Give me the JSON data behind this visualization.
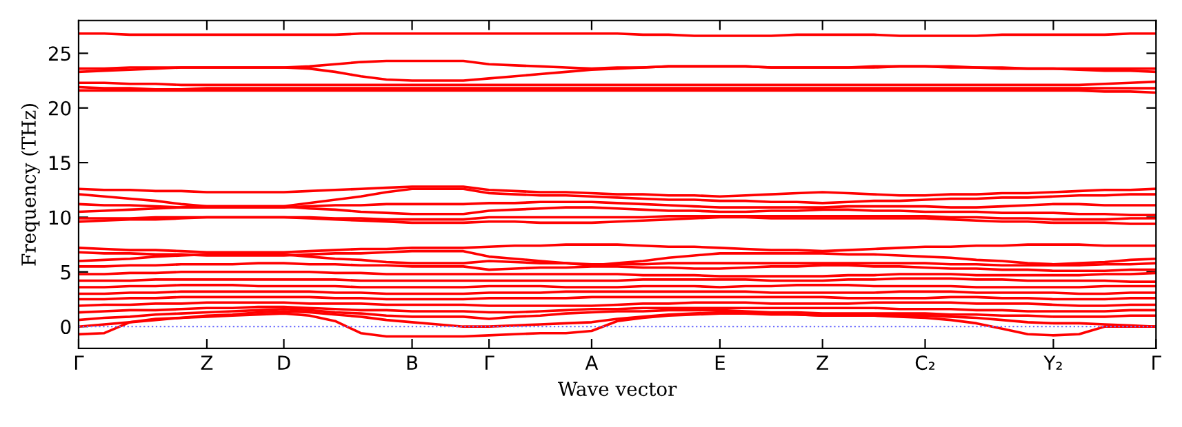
{
  "chart_data": {
    "type": "line",
    "xlabel": "Wave vector",
    "ylabel": "Frequency (THz)",
    "categories": [
      "Γ",
      null,
      null,
      null,
      null,
      "Z",
      null,
      null,
      "D",
      null,
      null,
      null,
      null,
      "B",
      null,
      null,
      "Γ",
      null,
      null,
      null,
      "A",
      null,
      null,
      null,
      null,
      "E",
      null,
      null,
      null,
      "Z",
      null,
      null,
      null,
      "C₂",
      null,
      null,
      null,
      null,
      "Y₂",
      null,
      null,
      null,
      "Γ"
    ],
    "ylim": [
      -2,
      28
    ],
    "yticks": [
      0,
      5,
      10,
      15,
      20,
      25
    ],
    "grid": false,
    "marker": "none",
    "line_style": "solid",
    "ref_lines": [
      {
        "axis": "y",
        "value": 0,
        "color": "#6f6fff",
        "line_style": "dotted"
      }
    ],
    "series": [
      {
        "color": "#ff0000",
        "values": [
          26.8,
          26.8,
          26.7,
          26.7,
          26.7,
          26.7,
          26.7,
          26.7,
          26.7,
          26.7,
          26.7,
          26.8,
          26.8,
          26.8,
          26.8,
          26.8,
          26.8,
          26.8,
          26.8,
          26.8,
          26.8,
          26.8,
          26.7,
          26.7,
          26.6,
          26.6,
          26.6,
          26.6,
          26.7,
          26.7,
          26.7,
          26.7,
          26.6,
          26.6,
          26.6,
          26.6,
          26.7,
          26.7,
          26.7,
          26.7,
          26.7,
          26.8,
          26.8
        ]
      },
      {
        "color": "#ff0000",
        "values": [
          23.6,
          23.6,
          23.7,
          23.7,
          23.7,
          23.7,
          23.7,
          23.7,
          23.7,
          23.8,
          24.0,
          24.2,
          24.3,
          24.3,
          24.3,
          24.3,
          24.0,
          23.9,
          23.8,
          23.7,
          23.6,
          23.7,
          23.7,
          23.8,
          23.8,
          23.8,
          23.8,
          23.7,
          23.7,
          23.7,
          23.7,
          23.8,
          23.8,
          23.8,
          23.7,
          23.7,
          23.6,
          23.6,
          23.6,
          23.5,
          23.4,
          23.4,
          23.3
        ]
      },
      {
        "color": "#ff0000",
        "values": [
          23.3,
          23.4,
          23.5,
          23.6,
          23.7,
          23.7,
          23.7,
          23.7,
          23.7,
          23.6,
          23.3,
          22.9,
          22.6,
          22.5,
          22.5,
          22.5,
          22.7,
          22.9,
          23.1,
          23.3,
          23.5,
          23.6,
          23.7,
          23.8,
          23.8,
          23.8,
          23.8,
          23.7,
          23.7,
          23.7,
          23.7,
          23.7,
          23.8,
          23.8,
          23.8,
          23.7,
          23.7,
          23.6,
          23.6,
          23.6,
          23.6,
          23.6,
          23.6
        ]
      },
      {
        "color": "#ff0000",
        "values": [
          22.3,
          22.3,
          22.2,
          22.2,
          22.1,
          22.1,
          22.1,
          22.1,
          22.1,
          22.1,
          22.1,
          22.1,
          22.1,
          22.1,
          22.1,
          22.1,
          22.1,
          22.1,
          22.1,
          22.1,
          22.1,
          22.1,
          22.1,
          22.1,
          22.1,
          22.1,
          22.1,
          22.1,
          22.1,
          22.1,
          22.1,
          22.1,
          22.1,
          22.1,
          22.1,
          22.1,
          22.1,
          22.1,
          22.1,
          22.1,
          22.2,
          22.3,
          22.4
        ]
      },
      {
        "color": "#ff0000",
        "values": [
          21.9,
          21.8,
          21.8,
          21.7,
          21.7,
          21.8,
          21.8,
          21.8,
          21.8,
          21.8,
          21.8,
          21.8,
          21.8,
          21.8,
          21.8,
          21.8,
          21.8,
          21.8,
          21.8,
          21.8,
          21.8,
          21.8,
          21.8,
          21.8,
          21.8,
          21.8,
          21.8,
          21.8,
          21.8,
          21.8,
          21.8,
          21.8,
          21.8,
          21.8,
          21.8,
          21.8,
          21.8,
          21.8,
          21.8,
          21.8,
          21.8,
          21.8,
          21.8
        ]
      },
      {
        "color": "#ff0000",
        "values": [
          21.6,
          21.6,
          21.6,
          21.6,
          21.6,
          21.6,
          21.6,
          21.6,
          21.6,
          21.6,
          21.6,
          21.6,
          21.6,
          21.6,
          21.6,
          21.6,
          21.6,
          21.6,
          21.6,
          21.6,
          21.6,
          21.6,
          21.6,
          21.6,
          21.6,
          21.6,
          21.6,
          21.6,
          21.6,
          21.6,
          21.6,
          21.6,
          21.6,
          21.6,
          21.6,
          21.6,
          21.6,
          21.6,
          21.6,
          21.6,
          21.5,
          21.5,
          21.4
        ]
      },
      {
        "color": "#ff0000",
        "values": [
          12.6,
          12.5,
          12.5,
          12.4,
          12.4,
          12.3,
          12.3,
          12.3,
          12.3,
          12.4,
          12.5,
          12.6,
          12.7,
          12.8,
          12.8,
          12.8,
          12.5,
          12.4,
          12.3,
          12.3,
          12.2,
          12.1,
          12.1,
          12.0,
          12.0,
          11.9,
          12.0,
          12.1,
          12.2,
          12.3,
          12.2,
          12.1,
          12.0,
          12.0,
          12.1,
          12.1,
          12.2,
          12.2,
          12.3,
          12.4,
          12.5,
          12.5,
          12.6
        ]
      },
      {
        "color": "#ff0000",
        "values": [
          12.1,
          11.9,
          11.7,
          11.5,
          11.2,
          11.0,
          11.0,
          11.0,
          11.0,
          11.3,
          11.6,
          11.9,
          12.3,
          12.6,
          12.6,
          12.6,
          12.2,
          12.1,
          12.0,
          12.0,
          11.9,
          11.8,
          11.7,
          11.6,
          11.6,
          11.5,
          11.5,
          11.4,
          11.4,
          11.3,
          11.4,
          11.5,
          11.5,
          11.6,
          11.7,
          11.7,
          11.8,
          11.8,
          11.9,
          12.0,
          12.0,
          12.1,
          12.1
        ]
      },
      {
        "color": "#ff0000",
        "values": [
          11.2,
          11.1,
          11.1,
          11.0,
          10.9,
          10.9,
          10.9,
          10.9,
          10.9,
          11.0,
          11.1,
          11.1,
          11.2,
          11.2,
          11.2,
          11.2,
          11.3,
          11.3,
          11.4,
          11.4,
          11.4,
          11.3,
          11.2,
          11.1,
          11.0,
          10.9,
          10.9,
          10.9,
          10.9,
          10.9,
          11.0,
          11.0,
          11.0,
          11.0,
          10.9,
          10.9,
          11.0,
          11.1,
          11.2,
          11.2,
          11.1,
          11.1,
          11.1
        ]
      },
      {
        "color": "#ff0000",
        "values": [
          10.5,
          10.6,
          10.7,
          10.8,
          10.9,
          11.0,
          11.0,
          11.0,
          11.0,
          10.8,
          10.7,
          10.5,
          10.4,
          10.3,
          10.3,
          10.3,
          10.6,
          10.7,
          10.8,
          10.9,
          10.9,
          10.8,
          10.7,
          10.6,
          10.6,
          10.5,
          10.5,
          10.6,
          10.6,
          10.7,
          10.7,
          10.6,
          10.6,
          10.5,
          10.5,
          10.5,
          10.4,
          10.4,
          10.4,
          10.3,
          10.3,
          10.2,
          10.2
        ]
      },
      {
        "color": "#ff0000",
        "values": [
          9.9,
          9.9,
          9.9,
          10.0,
          10.0,
          10.0,
          10.0,
          10.0,
          10.0,
          10.0,
          9.9,
          9.9,
          9.8,
          9.8,
          9.8,
          9.8,
          10.0,
          10.0,
          10.0,
          10.0,
          10.0,
          10.0,
          10.0,
          10.1,
          10.1,
          10.1,
          10.1,
          10.1,
          10.1,
          10.1,
          10.1,
          10.1,
          10.1,
          10.1,
          10.0,
          10.0,
          9.9,
          9.9,
          9.8,
          9.8,
          9.8,
          9.9,
          9.9
        ]
      },
      {
        "color": "#ff0000",
        "values": [
          9.6,
          9.7,
          9.8,
          9.8,
          9.9,
          10.0,
          10.0,
          10.0,
          10.0,
          9.9,
          9.8,
          9.7,
          9.6,
          9.5,
          9.5,
          9.5,
          9.6,
          9.6,
          9.5,
          9.5,
          9.5,
          9.6,
          9.7,
          9.8,
          9.9,
          10.0,
          10.0,
          9.9,
          9.9,
          9.9,
          9.9,
          9.9,
          9.9,
          9.9,
          9.8,
          9.7,
          9.6,
          9.6,
          9.5,
          9.5,
          9.5,
          9.4,
          9.4
        ]
      },
      {
        "color": "#ff0000",
        "values": [
          7.2,
          7.1,
          7.0,
          7.0,
          6.9,
          6.8,
          6.8,
          6.8,
          6.8,
          6.9,
          7.0,
          7.1,
          7.1,
          7.2,
          7.2,
          7.2,
          7.3,
          7.4,
          7.4,
          7.5,
          7.5,
          7.5,
          7.4,
          7.3,
          7.3,
          7.2,
          7.1,
          7.0,
          7.0,
          6.9,
          7.0,
          7.1,
          7.2,
          7.3,
          7.3,
          7.4,
          7.4,
          7.5,
          7.5,
          7.5,
          7.4,
          7.4,
          7.4
        ]
      },
      {
        "color": "#ff0000",
        "values": [
          6.8,
          6.7,
          6.7,
          6.6,
          6.6,
          6.5,
          6.5,
          6.5,
          6.5,
          6.6,
          6.7,
          6.7,
          6.8,
          6.9,
          6.9,
          6.9,
          6.4,
          6.2,
          6.0,
          5.8,
          5.6,
          5.8,
          6.0,
          6.3,
          6.5,
          6.7,
          6.7,
          6.7,
          6.7,
          6.7,
          6.6,
          6.6,
          6.5,
          6.4,
          6.3,
          6.1,
          6.0,
          5.8,
          5.7,
          5.8,
          5.9,
          6.1,
          6.2
        ]
      },
      {
        "color": "#ff0000",
        "values": [
          6.0,
          6.1,
          6.2,
          6.4,
          6.5,
          6.6,
          6.6,
          6.6,
          6.6,
          6.4,
          6.2,
          6.1,
          5.9,
          5.8,
          5.8,
          5.8,
          6.0,
          5.9,
          5.8,
          5.8,
          5.7,
          5.7,
          5.7,
          5.8,
          5.8,
          5.8,
          5.8,
          5.8,
          5.8,
          5.8,
          5.8,
          5.8,
          5.8,
          5.8,
          5.7,
          5.7,
          5.6,
          5.6,
          5.6,
          5.6,
          5.7,
          5.7,
          5.8
        ]
      },
      {
        "color": "#ff0000",
        "values": [
          5.5,
          5.5,
          5.6,
          5.6,
          5.7,
          5.7,
          5.7,
          5.8,
          5.8,
          5.7,
          5.7,
          5.6,
          5.6,
          5.5,
          5.5,
          5.5,
          5.2,
          5.3,
          5.4,
          5.4,
          5.5,
          5.5,
          5.4,
          5.4,
          5.3,
          5.3,
          5.4,
          5.5,
          5.5,
          5.6,
          5.6,
          5.5,
          5.5,
          5.4,
          5.3,
          5.3,
          5.2,
          5.2,
          5.1,
          5.1,
          5.1,
          5.2,
          5.2
        ]
      },
      {
        "color": "#ff0000",
        "values": [
          4.8,
          4.8,
          4.9,
          4.9,
          5.0,
          5.0,
          5.0,
          5.0,
          5.0,
          5.0,
          4.9,
          4.9,
          4.8,
          4.8,
          4.8,
          4.8,
          4.8,
          4.8,
          4.8,
          4.8,
          4.8,
          4.8,
          4.7,
          4.7,
          4.7,
          4.6,
          4.6,
          4.6,
          4.6,
          4.6,
          4.7,
          4.7,
          4.8,
          4.8,
          4.8,
          4.7,
          4.7,
          4.7,
          4.7,
          4.7,
          4.8,
          4.8,
          4.9
        ]
      },
      {
        "color": "#ff0000",
        "values": [
          4.2,
          4.2,
          4.2,
          4.3,
          4.3,
          4.3,
          4.3,
          4.3,
          4.3,
          4.3,
          4.3,
          4.2,
          4.2,
          4.2,
          4.2,
          4.2,
          4.2,
          4.2,
          4.2,
          4.2,
          4.2,
          4.2,
          4.3,
          4.3,
          4.3,
          4.3,
          4.3,
          4.2,
          4.2,
          4.2,
          4.3,
          4.3,
          4.4,
          4.4,
          4.4,
          4.3,
          4.3,
          4.2,
          4.2,
          4.2,
          4.2,
          4.1,
          4.1
        ]
      },
      {
        "color": "#ff0000",
        "values": [
          3.6,
          3.6,
          3.7,
          3.7,
          3.8,
          3.8,
          3.8,
          3.7,
          3.7,
          3.7,
          3.7,
          3.6,
          3.6,
          3.6,
          3.6,
          3.6,
          3.7,
          3.7,
          3.7,
          3.6,
          3.6,
          3.6,
          3.7,
          3.7,
          3.7,
          3.6,
          3.7,
          3.7,
          3.8,
          3.8,
          3.8,
          3.7,
          3.7,
          3.7,
          3.7,
          3.6,
          3.6,
          3.6,
          3.6,
          3.6,
          3.7,
          3.7,
          3.7
        ]
      },
      {
        "color": "#ff0000",
        "values": [
          3.0,
          3.0,
          3.1,
          3.1,
          3.2,
          3.2,
          3.2,
          3.2,
          3.2,
          3.2,
          3.1,
          3.1,
          3.0,
          3.0,
          3.0,
          3.0,
          3.1,
          3.1,
          3.1,
          3.2,
          3.2,
          3.2,
          3.2,
          3.2,
          3.2,
          3.2,
          3.2,
          3.1,
          3.1,
          3.1,
          3.1,
          3.1,
          3.2,
          3.2,
          3.2,
          3.1,
          3.1,
          3.1,
          3.1,
          3.0,
          3.0,
          3.1,
          3.1
        ]
      },
      {
        "color": "#ff0000",
        "values": [
          2.5,
          2.5,
          2.6,
          2.6,
          2.7,
          2.7,
          2.7,
          2.7,
          2.7,
          2.7,
          2.6,
          2.6,
          2.5,
          2.5,
          2.5,
          2.5,
          2.6,
          2.6,
          2.6,
          2.6,
          2.7,
          2.7,
          2.7,
          2.7,
          2.7,
          2.7,
          2.7,
          2.7,
          2.7,
          2.7,
          2.6,
          2.6,
          2.6,
          2.6,
          2.7,
          2.7,
          2.6,
          2.6,
          2.5,
          2.5,
          2.5,
          2.6,
          2.6
        ]
      },
      {
        "color": "#ff0000",
        "values": [
          1.9,
          2.0,
          2.0,
          2.1,
          2.1,
          2.2,
          2.2,
          2.2,
          2.2,
          2.1,
          2.1,
          2.1,
          2.0,
          2.0,
          2.0,
          2.0,
          1.9,
          1.9,
          1.9,
          1.9,
          1.9,
          2.0,
          2.1,
          2.1,
          2.2,
          2.2,
          2.2,
          2.1,
          2.1,
          2.1,
          2.1,
          2.2,
          2.2,
          2.2,
          2.2,
          2.1,
          2.1,
          2.1,
          2.0,
          1.9,
          1.9,
          2.0,
          2.0
        ]
      },
      {
        "color": "#ff0000",
        "values": [
          1.3,
          1.4,
          1.5,
          1.5,
          1.6,
          1.7,
          1.7,
          1.8,
          1.8,
          1.7,
          1.6,
          1.5,
          1.5,
          1.4,
          1.4,
          1.4,
          1.3,
          1.3,
          1.4,
          1.5,
          1.6,
          1.6,
          1.7,
          1.7,
          1.7,
          1.7,
          1.7,
          1.7,
          1.7,
          1.7,
          1.7,
          1.7,
          1.6,
          1.6,
          1.6,
          1.5,
          1.5,
          1.4,
          1.4,
          1.4,
          1.4,
          1.5,
          1.5
        ]
      },
      {
        "color": "#ff0000",
        "values": [
          0.6,
          0.8,
          0.9,
          1.1,
          1.2,
          1.3,
          1.4,
          1.5,
          1.6,
          1.5,
          1.3,
          1.2,
          1.0,
          0.9,
          0.9,
          0.9,
          0.7,
          0.9,
          1.0,
          1.2,
          1.3,
          1.4,
          1.4,
          1.5,
          1.5,
          1.5,
          1.4,
          1.3,
          1.3,
          1.2,
          1.2,
          1.2,
          1.2,
          1.2,
          1.1,
          1.1,
          1.0,
          1.0,
          0.9,
          0.9,
          0.9,
          1.0,
          1.0
        ]
      },
      {
        "color": "#ff0000",
        "values": [
          0.0,
          0.2,
          0.4,
          0.6,
          0.8,
          1.0,
          1.1,
          1.3,
          1.4,
          1.3,
          1.1,
          0.9,
          0.6,
          0.4,
          0.2,
          0.0,
          0.0,
          0.1,
          0.2,
          0.3,
          0.4,
          0.7,
          0.9,
          1.1,
          1.2,
          1.3,
          1.3,
          1.2,
          1.1,
          1.0,
          1.0,
          1.0,
          1.0,
          1.0,
          0.9,
          0.8,
          0.6,
          0.4,
          0.3,
          0.3,
          0.2,
          0.1,
          0.0
        ]
      },
      {
        "color": "#ff0000",
        "values": [
          -0.7,
          -0.6,
          0.4,
          0.7,
          0.8,
          0.9,
          1.0,
          1.1,
          1.2,
          1.0,
          0.5,
          -0.6,
          -0.9,
          -0.9,
          -0.9,
          -0.9,
          -0.8,
          -0.7,
          -0.6,
          -0.6,
          -0.4,
          0.5,
          0.8,
          1.0,
          1.1,
          1.2,
          1.2,
          1.1,
          1.1,
          1.0,
          1.0,
          1.0,
          0.9,
          0.8,
          0.6,
          0.3,
          -0.2,
          -0.7,
          -0.8,
          -0.7,
          0.0,
          0.0,
          0.0
        ]
      }
    ]
  }
}
